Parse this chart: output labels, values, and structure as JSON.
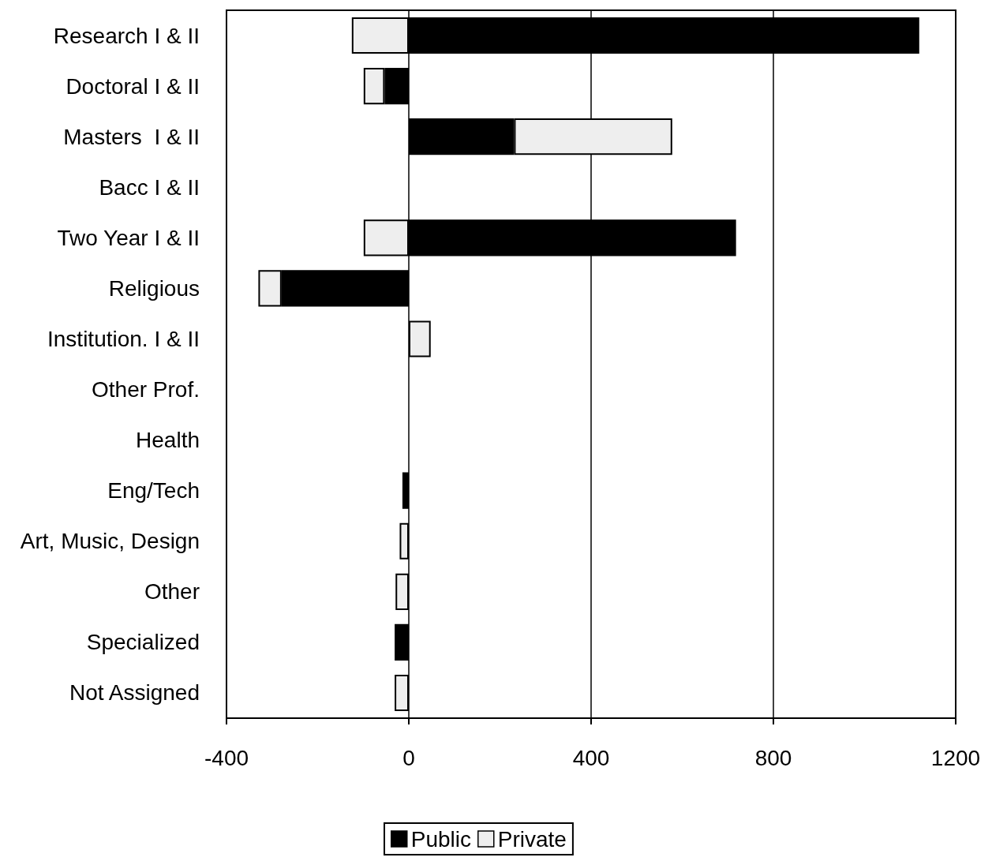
{
  "chart_data": {
    "type": "bar",
    "orientation": "horizontal",
    "stacked": true,
    "categories": [
      "Research I & II",
      "Doctoral I & II",
      "Masters  I & II",
      "Bacc I & II",
      "Two Year I & II",
      "Religious",
      "Institution. I & II",
      "Other Prof.",
      "Health",
      "Eng/Tech",
      "Art, Music, Design",
      "Other",
      "Specialized",
      "Not Assigned"
    ],
    "series": [
      {
        "name": "Public",
        "color": "#000000",
        "values": [
          1120,
          -53,
          231,
          null,
          718,
          -279,
          null,
          null,
          null,
          -14,
          null,
          null,
          -31,
          null
        ]
      },
      {
        "name": "Private",
        "color": "#eeeeee",
        "values": [
          -125,
          -46,
          347,
          null,
          -99,
          -51,
          48,
          null,
          null,
          null,
          -20,
          -29,
          null,
          -31
        ]
      }
    ],
    "xlim": [
      -400,
      1200
    ],
    "xticks": [
      -400,
      0,
      400,
      800,
      1200
    ],
    "grid": "x",
    "legend": "bottom"
  }
}
